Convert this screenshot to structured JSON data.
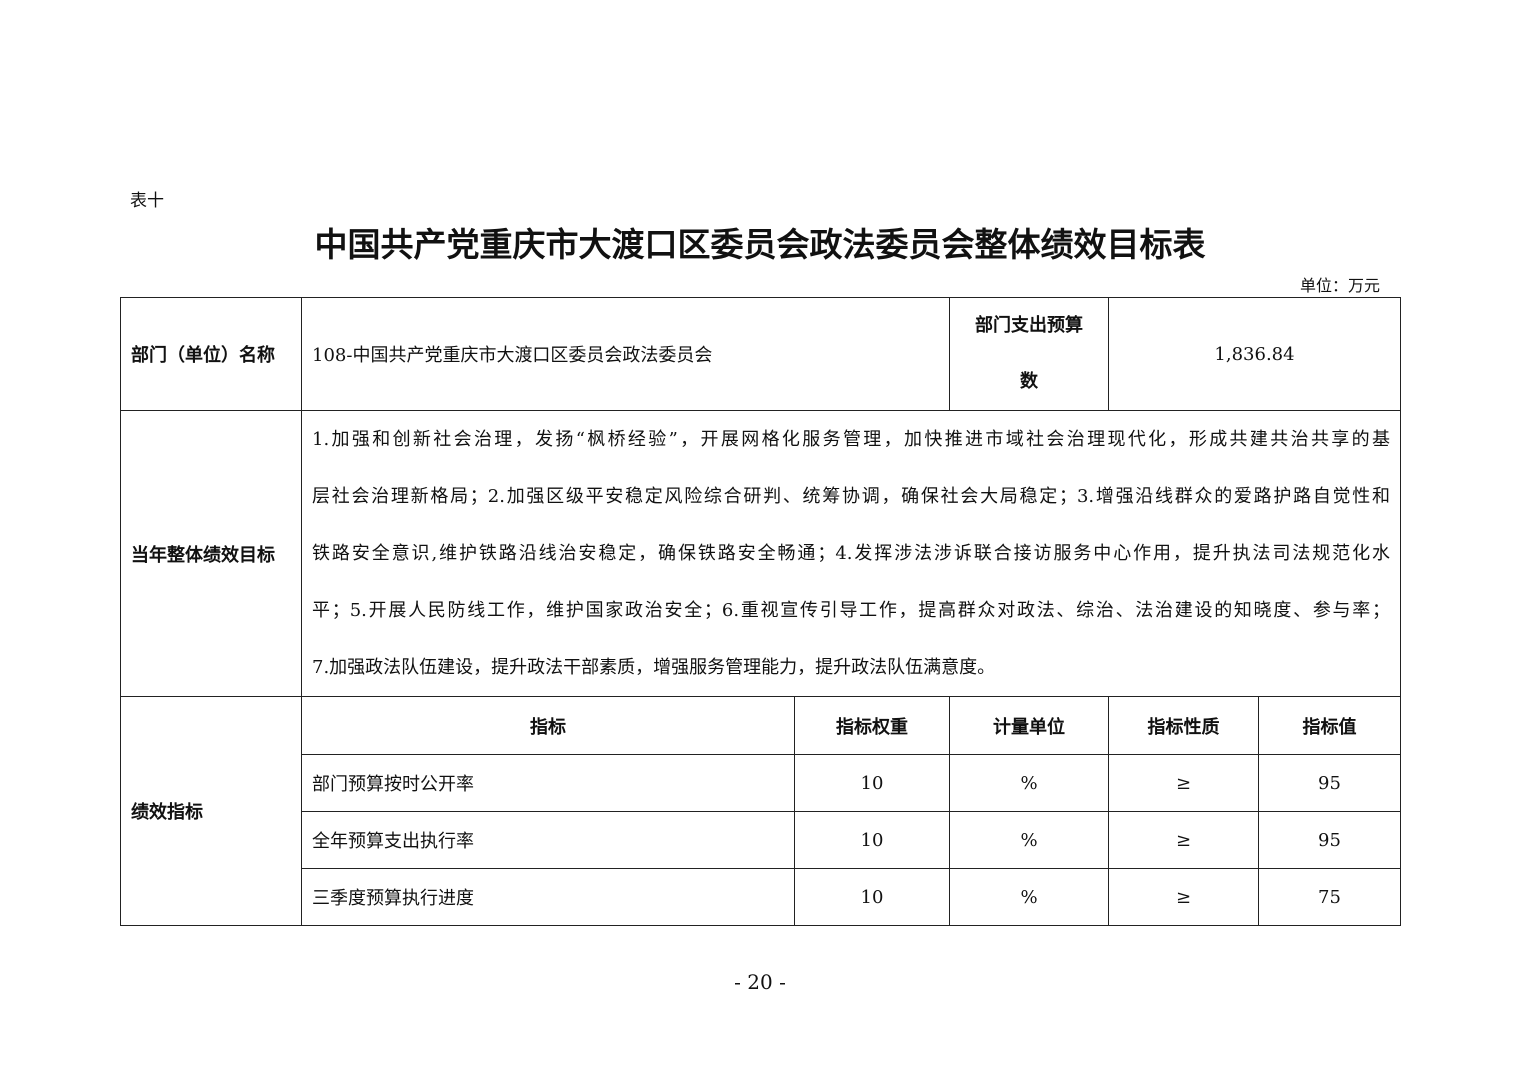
{
  "label": "表十",
  "title": "中国共产党重庆市大渡口区委员会政法委员会整体绩效目标表",
  "unit": "单位：万元",
  "dept": {
    "label": "部门（单位）名称",
    "name": "108-中国共产党重庆市大渡口区委员会政法委员会",
    "budget_label_1": "部门支出预算",
    "budget_label_2": "数",
    "budget_value": "1,836.84"
  },
  "goals": {
    "label": "当年整体绩效目标",
    "lines": [
      "1.加强和创新社会治理，发扬“枫桥经验”，开展网格化服务管理，加快推进市域社会治理现代化，形成共建共治共享的基",
      "层社会治理新格局；2.加强区级平安稳定风险综合研判、统筹协调，确保社会大局稳定；3.增强沿线群众的爱路护路自觉性和",
      "铁路安全意识,维护铁路沿线治安稳定，确保铁路安全畅通；4.发挥涉法涉诉联合接访服务中心作用，提升执法司法规范化水",
      "平；5.开展人民防线工作，维护国家政治安全；6.重视宣传引导工作，提高群众对政法、综治、法治建设的知晓度、参与率；",
      "7.加强政法队伍建设，提升政法干部素质，增强服务管理能力，提升政法队伍满意度。"
    ]
  },
  "indicators": {
    "label": "绩效指标",
    "headers": [
      "指标",
      "指标权重",
      "计量单位",
      "指标性质",
      "指标值"
    ],
    "rows": [
      [
        "部门预算按时公开率",
        "10",
        "%",
        "≥",
        "95"
      ],
      [
        "全年预算支出执行率",
        "10",
        "%",
        "≥",
        "95"
      ],
      [
        "三季度预算执行进度",
        "10",
        "%",
        "≥",
        "75"
      ]
    ]
  },
  "page_number": "- 20 -"
}
